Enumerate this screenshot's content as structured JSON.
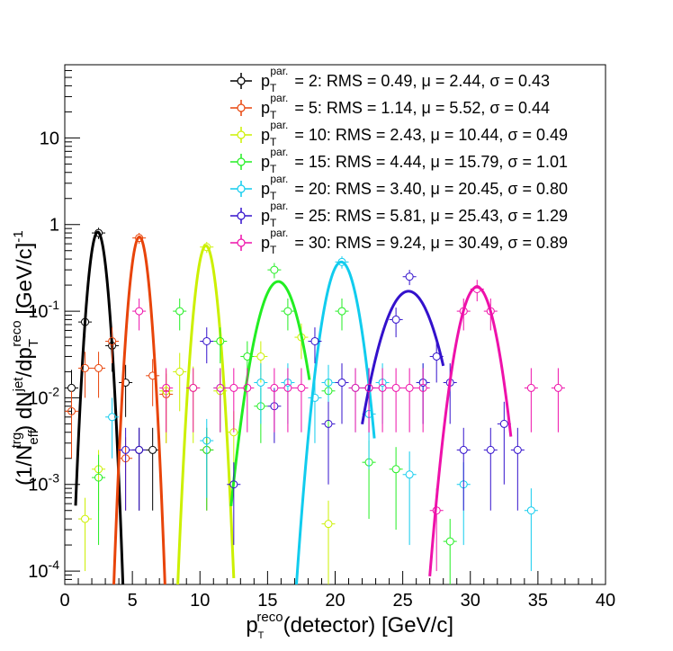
{
  "chart_data": {
    "type": "scatter",
    "title": "",
    "x_axis": {
      "scale": "linear",
      "range": [
        0,
        40
      ],
      "ticks": [
        0,
        5,
        10,
        15,
        20,
        25,
        30,
        35,
        40
      ],
      "tick_labels": [
        "0",
        "5",
        "10",
        "15",
        "20",
        "25",
        "30",
        "35",
        "40"
      ],
      "title": {
        "p": "p",
        "sub": "T",
        "sup": "reco",
        "rest": "(detector) [GeV/c]"
      }
    },
    "y_axis": {
      "scale": "log",
      "range": [
        7e-05,
        70
      ],
      "ticks": [
        0.0001,
        0.001,
        0.01,
        0.1,
        1,
        10
      ],
      "title": {
        "prefix": "(1/N",
        "prefix_sub": "eff",
        "prefix_sup": "trg",
        "mid": ") dN",
        "mid_sup": "jet",
        "slash": "/dp",
        "slash_sub": "T",
        "slash_sup": "reco",
        "units": " [GeV/c]",
        "units_sup": "-1"
      }
    },
    "legend_position": "top-right",
    "series": [
      {
        "name": "= 2: RMS = 0.49, μ = 2.44, σ = 0.43",
        "label_p": "p",
        "label_sub": "T",
        "label_sup": "par.",
        "color": "#000000",
        "points": [
          [
            0.5,
            0.013,
            0.008
          ],
          [
            1.5,
            0.075,
            0.025
          ],
          [
            2.5,
            0.8,
            0.12
          ],
          [
            3.5,
            0.04,
            0.02
          ],
          [
            4.5,
            0.015,
            0.009
          ],
          [
            5.5,
            0.0025,
            0.002
          ],
          [
            6.5,
            0.0025,
            0.002
          ]
        ],
        "fit": {
          "mu": 2.44,
          "sigma": 0.43,
          "amp": 0.82,
          "xmin": 0.8,
          "xmax": 4.5
        }
      },
      {
        "name": "= 5: RMS = 1.14, μ = 5.52, σ = 0.44",
        "label_p": "p",
        "label_sub": "T",
        "label_sup": "par.",
        "color": "#e8440a",
        "points": [
          [
            0.5,
            0.007,
            0.005
          ],
          [
            1.5,
            0.022,
            0.012
          ],
          [
            2.5,
            0.022,
            0.012
          ],
          [
            3.5,
            0.045,
            0.02
          ],
          [
            4.5,
            0.002,
            0.0015
          ],
          [
            5.5,
            0.7,
            0.1
          ],
          [
            6.5,
            0.018,
            0.01
          ],
          [
            7.5,
            0.011,
            0.008
          ],
          [
            10.5,
            0.0025,
            0.002
          ]
        ],
        "fit": {
          "mu": 5.52,
          "sigma": 0.44,
          "amp": 0.72,
          "xmin": 3.4,
          "xmax": 7.7
        }
      },
      {
        "name": "= 10: RMS = 2.43, μ = 10.44, σ = 0.49",
        "label_p": "p",
        "label_sub": "T",
        "label_sup": "par.",
        "color": "#ccf000",
        "points": [
          [
            1.5,
            0.0004,
            0.0003
          ],
          [
            2.5,
            0.0015,
            0.001
          ],
          [
            7.5,
            0.012,
            0.009
          ],
          [
            8.5,
            0.02,
            0.013
          ],
          [
            9.5,
            0.013,
            0.01
          ],
          [
            10.5,
            0.55,
            0.08
          ],
          [
            11.5,
            0.012,
            0.008
          ],
          [
            12.5,
            0.004,
            0.003
          ],
          [
            14.5,
            0.03,
            0.015
          ],
          [
            17.5,
            0.05,
            0.022
          ],
          [
            19.5,
            0.00035,
            0.0003
          ]
        ],
        "fit": {
          "mu": 10.44,
          "sigma": 0.49,
          "amp": 0.57,
          "xmin": 8.3,
          "xmax": 12.5
        }
      },
      {
        "name": "= 15: RMS = 4.44, μ = 15.79, σ = 1.01",
        "label_p": "p",
        "label_sub": "T",
        "label_sup": "par.",
        "color": "#22ee22",
        "points": [
          [
            2.5,
            0.0012,
            0.001
          ],
          [
            8.5,
            0.1,
            0.04
          ],
          [
            10.5,
            0.0025,
            0.002
          ],
          [
            11.5,
            0.045,
            0.02
          ],
          [
            13.5,
            0.03,
            0.015
          ],
          [
            14.5,
            0.008,
            0.005
          ],
          [
            15.5,
            0.3,
            0.06
          ],
          [
            16.5,
            0.1,
            0.04
          ],
          [
            19.5,
            0.012,
            0.008
          ],
          [
            20.5,
            0.1,
            0.04
          ],
          [
            22.5,
            0.0018,
            0.0014
          ],
          [
            24.5,
            0.0015,
            0.0012
          ],
          [
            28.5,
            0.00022,
            0.00018
          ]
        ],
        "fit": {
          "mu": 15.79,
          "sigma": 1.01,
          "amp": 0.22,
          "xmin": 12.3,
          "xmax": 18.1
        }
      },
      {
        "name": "= 20: RMS = 3.40, μ = 20.45, σ = 0.80",
        "label_p": "p",
        "label_sub": "T",
        "label_sup": "par.",
        "color": "#11ccee",
        "points": [
          [
            3.5,
            0.006,
            0.004
          ],
          [
            10.5,
            0.0032,
            0.0025
          ],
          [
            11.5,
            0.013,
            0.009
          ],
          [
            14.5,
            0.015,
            0.01
          ],
          [
            16.5,
            0.015,
            0.01
          ],
          [
            18.5,
            0.01,
            0.007
          ],
          [
            19.5,
            0.015,
            0.009
          ],
          [
            20.5,
            0.37,
            0.06
          ],
          [
            21.5,
            0.013,
            0.009
          ],
          [
            22.5,
            0.0065,
            0.005
          ],
          [
            23.5,
            0.015,
            0.01
          ],
          [
            25.5,
            0.0013,
            0.0011
          ],
          [
            26.5,
            0.015,
            0.01
          ],
          [
            29.5,
            0.001,
            0.0008
          ],
          [
            34.5,
            0.0005,
            0.0004
          ]
        ],
        "fit": {
          "mu": 20.45,
          "sigma": 0.8,
          "amp": 0.37,
          "xmin": 16.7,
          "xmax": 22.9
        }
      },
      {
        "name": "= 25: RMS = 5.81, μ = 25.43, σ = 1.29",
        "label_p": "p",
        "label_sub": "T",
        "label_sup": "par.",
        "color": "#3311cc",
        "points": [
          [
            4.5,
            0.0025,
            0.002
          ],
          [
            5.5,
            0.0025,
            0.002
          ],
          [
            10.5,
            0.045,
            0.02
          ],
          [
            12.5,
            0.001,
            0.0008
          ],
          [
            15.5,
            0.008,
            0.005
          ],
          [
            18.5,
            0.045,
            0.02
          ],
          [
            19.5,
            0.005,
            0.004
          ],
          [
            20.5,
            0.015,
            0.01
          ],
          [
            22.5,
            0.013,
            0.009
          ],
          [
            24.5,
            0.08,
            0.03
          ],
          [
            25.5,
            0.25,
            0.05
          ],
          [
            26.5,
            0.015,
            0.01
          ],
          [
            27.5,
            0.03,
            0.015
          ],
          [
            28.5,
            0.015,
            0.01
          ],
          [
            29.5,
            0.0025,
            0.002
          ],
          [
            31.5,
            0.0025,
            0.002
          ],
          [
            32.5,
            0.005,
            0.004
          ],
          [
            33.5,
            0.0025,
            0.002
          ]
        ],
        "fit": {
          "mu": 25.43,
          "sigma": 1.29,
          "amp": 0.17,
          "xmin": 22.0,
          "xmax": 28.0
        }
      },
      {
        "name": "= 30: RMS = 9.24, μ = 30.49, σ = 0.89",
        "label_p": "p",
        "label_sub": "T",
        "label_sup": "par.",
        "color": "#ee11aa",
        "points": [
          [
            5.5,
            0.1,
            0.04
          ],
          [
            7.5,
            0.013,
            0.009
          ],
          [
            9.5,
            0.013,
            0.009
          ],
          [
            11.5,
            0.013,
            0.009
          ],
          [
            12.5,
            0.013,
            0.009
          ],
          [
            13.5,
            0.013,
            0.009
          ],
          [
            15.5,
            0.013,
            0.009
          ],
          [
            16.5,
            0.013,
            0.009
          ],
          [
            17.5,
            0.013,
            0.009
          ],
          [
            21.5,
            0.013,
            0.009
          ],
          [
            22.5,
            0.013,
            0.009
          ],
          [
            23.5,
            0.013,
            0.009
          ],
          [
            24.5,
            0.013,
            0.009
          ],
          [
            25.5,
            0.013,
            0.009
          ],
          [
            26.5,
            0.013,
            0.009
          ],
          [
            27.5,
            0.0005,
            0.0004
          ],
          [
            29.5,
            0.1,
            0.04
          ],
          [
            30.5,
            0.18,
            0.05
          ],
          [
            31.5,
            0.1,
            0.04
          ],
          [
            34.5,
            0.013,
            0.009
          ],
          [
            36.5,
            0.013,
            0.009
          ]
        ],
        "fit": {
          "mu": 30.49,
          "sigma": 0.89,
          "amp": 0.19,
          "xmin": 27.0,
          "xmax": 33.0
        }
      }
    ]
  }
}
